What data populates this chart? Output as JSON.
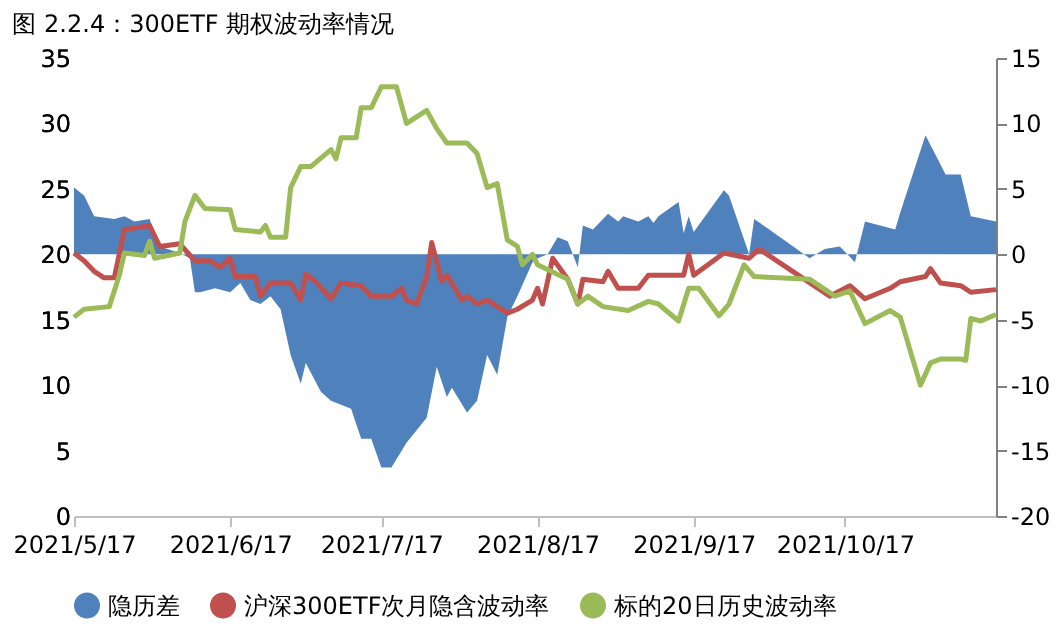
{
  "chart_data": {
    "type": "line",
    "title": "图 2.2.4：300ETF 期权波动率情况",
    "xlim": [
      "2021-05-17",
      "2021-11-16"
    ],
    "xticks": [
      {
        "value": "2021-05-17",
        "label": "2021/5/17"
      },
      {
        "value": "2021-06-17",
        "label": "2021/6/17"
      },
      {
        "value": "2021-07-17",
        "label": "2021/7/17"
      },
      {
        "value": "2021-08-17",
        "label": "2021/8/17"
      },
      {
        "value": "2021-09-17",
        "label": "2021/9/17"
      },
      {
        "value": "2021-10-17",
        "label": "2021/10/17"
      }
    ],
    "ylim": [
      0,
      35
    ],
    "yticks": [
      0,
      5,
      10,
      15,
      20,
      25,
      30,
      35
    ],
    "y2lim": [
      -20,
      15
    ],
    "y2ticks": [
      -20,
      -15,
      -10,
      -5,
      0,
      5,
      10,
      15
    ],
    "grid": false,
    "legend": "bottom",
    "marker": "none",
    "line_style": "solid",
    "series": [
      {
        "name": "隐历差",
        "type": "area",
        "axis": "y2",
        "color": "#4f81bd",
        "x": [
          "2021-05-17",
          "2021-05-19",
          "2021-05-21",
          "2021-05-25",
          "2021-05-27",
          "2021-05-29",
          "2021-06-01",
          "2021-06-03",
          "2021-06-07",
          "2021-06-09",
          "2021-06-10",
          "2021-06-11",
          "2021-06-14",
          "2021-06-17",
          "2021-06-19",
          "2021-06-21",
          "2021-06-23",
          "2021-06-25",
          "2021-06-27",
          "2021-06-29",
          "2021-07-01",
          "2021-07-02",
          "2021-07-05",
          "2021-07-07",
          "2021-07-11",
          "2021-07-13",
          "2021-07-15",
          "2021-07-17",
          "2021-07-19",
          "2021-07-22",
          "2021-07-26",
          "2021-07-28",
          "2021-07-30",
          "2021-07-31",
          "2021-08-03",
          "2021-08-05",
          "2021-08-07",
          "2021-08-09",
          "2021-08-11",
          "2021-08-13",
          "2021-08-16",
          "2021-08-17",
          "2021-08-19",
          "2021-08-21",
          "2021-08-23",
          "2021-08-25",
          "2021-08-26",
          "2021-08-28",
          "2021-08-31",
          "2021-09-02",
          "2021-09-03",
          "2021-09-06",
          "2021-09-08",
          "2021-09-09",
          "2021-09-10",
          "2021-09-14",
          "2021-09-15",
          "2021-09-16",
          "2021-09-17",
          "2021-09-23",
          "2021-09-24",
          "2021-09-28",
          "2021-09-29",
          "2021-10-02",
          "2021-10-10",
          "2021-10-13",
          "2021-10-16",
          "2021-10-19",
          "2021-10-21",
          "2021-10-27",
          "2021-10-28",
          "2021-11-02",
          "2021-11-06",
          "2021-11-09",
          "2021-11-11",
          "2021-11-16"
        ],
        "values": [
          5.1,
          4.5,
          2.9,
          2.7,
          2.9,
          2.5,
          2.7,
          0.6,
          0.1,
          -0.3,
          -2.9,
          -2.9,
          -2.6,
          -2.9,
          -2.2,
          -3.5,
          -3.8,
          -3.2,
          -4.2,
          -7.7,
          -9.9,
          -8.3,
          -10.5,
          -11.2,
          -11.8,
          -14.1,
          -14.1,
          -16.3,
          -16.3,
          -14.4,
          -12.5,
          -8.6,
          -10.9,
          -10.2,
          -12.1,
          -11.2,
          -7.7,
          -9.2,
          -4.8,
          -3.2,
          -0.6,
          -0.3,
          0,
          1.3,
          1.0,
          -1.0,
          2.2,
          1.9,
          3.1,
          2.5,
          2.9,
          2.5,
          2.9,
          2.4,
          2.9,
          4.0,
          1.6,
          2.9,
          1.7,
          4.9,
          4.5,
          0.0,
          2.7,
          1.9,
          -0.3,
          0.4,
          0.6,
          -0.6,
          2.5,
          1.9,
          3.2,
          9.1,
          6.1,
          6.1,
          2.9,
          2.5
        ]
      },
      {
        "name": "沪深300ETF次月隐含波动率",
        "color": "#c0504d",
        "x": [
          "2021-05-17",
          "2021-05-19",
          "2021-05-21",
          "2021-05-23",
          "2021-05-25",
          "2021-05-27",
          "2021-05-29",
          "2021-06-01",
          "2021-06-03",
          "2021-06-07",
          "2021-06-10",
          "2021-06-13",
          "2021-06-15",
          "2021-06-17",
          "2021-06-18",
          "2021-06-22",
          "2021-06-23",
          "2021-06-25",
          "2021-06-29",
          "2021-07-01",
          "2021-07-02",
          "2021-07-04",
          "2021-07-07",
          "2021-07-09",
          "2021-07-13",
          "2021-07-15",
          "2021-07-19",
          "2021-07-21",
          "2021-07-22",
          "2021-07-24",
          "2021-07-26",
          "2021-07-27",
          "2021-07-29",
          "2021-07-30",
          "2021-08-02",
          "2021-08-03",
          "2021-08-05",
          "2021-08-07",
          "2021-08-11",
          "2021-08-13",
          "2021-08-16",
          "2021-08-17",
          "2021-08-18",
          "2021-08-20",
          "2021-08-23",
          "2021-08-25",
          "2021-08-26",
          "2021-08-30",
          "2021-08-31",
          "2021-09-02",
          "2021-09-06",
          "2021-09-08",
          "2021-09-15",
          "2021-09-16",
          "2021-09-17",
          "2021-09-23",
          "2021-09-28",
          "2021-09-30",
          "2021-10-14",
          "2021-10-18",
          "2021-10-21",
          "2021-10-26",
          "2021-10-28",
          "2021-11-02",
          "2021-11-03",
          "2021-11-05",
          "2021-11-09",
          "2021-11-11",
          "2021-11-16"
        ],
        "values": [
          20.1,
          19.5,
          18.7,
          18.2,
          18.2,
          21.9,
          22.0,
          22.2,
          20.6,
          20.8,
          19.5,
          19.5,
          19.0,
          19.7,
          18.3,
          18.3,
          16.8,
          17.8,
          17.8,
          16.5,
          18.5,
          17.9,
          16.6,
          17.8,
          17.6,
          16.8,
          16.8,
          17.4,
          16.5,
          16.2,
          18.3,
          20.9,
          17.9,
          18.4,
          16.5,
          16.8,
          16.2,
          16.5,
          15.5,
          15.8,
          16.5,
          17.4,
          16.2,
          19.7,
          18.1,
          16.2,
          18.1,
          17.9,
          18.7,
          17.4,
          17.4,
          18.4,
          18.4,
          20.0,
          18.4,
          20.1,
          19.7,
          20.4,
          16.8,
          17.6,
          16.6,
          17.4,
          17.9,
          18.3,
          18.9,
          17.8,
          17.6,
          17.1,
          17.3
        ]
      },
      {
        "name": "标的20日历史波动率",
        "color": "#9bbb59",
        "x": [
          "2021-05-17",
          "2021-05-19",
          "2021-05-24",
          "2021-05-26",
          "2021-05-27",
          "2021-05-31",
          "2021-06-01",
          "2021-06-02",
          "2021-06-07",
          "2021-06-08",
          "2021-06-10",
          "2021-06-12",
          "2021-06-17",
          "2021-06-18",
          "2021-06-23",
          "2021-06-24",
          "2021-06-25",
          "2021-06-28",
          "2021-06-29",
          "2021-07-01",
          "2021-07-03",
          "2021-07-07",
          "2021-07-08",
          "2021-07-09",
          "2021-07-12",
          "2021-07-13",
          "2021-07-15",
          "2021-07-17",
          "2021-07-20",
          "2021-07-22",
          "2021-07-26",
          "2021-07-28",
          "2021-07-30",
          "2021-08-03",
          "2021-08-05",
          "2021-08-07",
          "2021-08-09",
          "2021-08-11",
          "2021-08-13",
          "2021-08-14",
          "2021-08-16",
          "2021-08-17",
          "2021-08-23",
          "2021-08-25",
          "2021-08-27",
          "2021-08-30",
          "2021-09-04",
          "2021-09-08",
          "2021-09-10",
          "2021-09-14",
          "2021-09-16",
          "2021-09-18",
          "2021-09-22",
          "2021-09-24",
          "2021-09-27",
          "2021-09-29",
          "2021-10-10",
          "2021-10-15",
          "2021-10-18",
          "2021-10-21",
          "2021-10-26",
          "2021-10-28",
          "2021-11-01",
          "2021-11-03",
          "2021-11-05",
          "2021-11-09",
          "2021-11-10",
          "2021-11-11",
          "2021-11-13",
          "2021-11-16"
        ],
        "values": [
          15.2,
          15.8,
          16.0,
          18.4,
          20.1,
          19.9,
          21.0,
          19.7,
          20.1,
          22.5,
          24.5,
          23.5,
          23.4,
          21.9,
          21.7,
          22.2,
          21.3,
          21.3,
          25.1,
          26.7,
          26.7,
          28.0,
          27.3,
          28.9,
          28.9,
          31.2,
          31.2,
          32.8,
          32.8,
          30.0,
          31.0,
          29.6,
          28.5,
          28.5,
          27.7,
          25.1,
          25.4,
          21.1,
          20.6,
          19.2,
          20.0,
          19.2,
          18.1,
          16.2,
          16.8,
          16.0,
          15.7,
          16.4,
          16.2,
          14.9,
          17.4,
          17.4,
          15.3,
          16.2,
          19.2,
          18.3,
          18.1,
          16.8,
          17.2,
          14.7,
          15.7,
          15.2,
          10.0,
          11.7,
          12.0,
          12.0,
          11.9,
          15.1,
          14.9,
          15.4
        ]
      }
    ]
  }
}
